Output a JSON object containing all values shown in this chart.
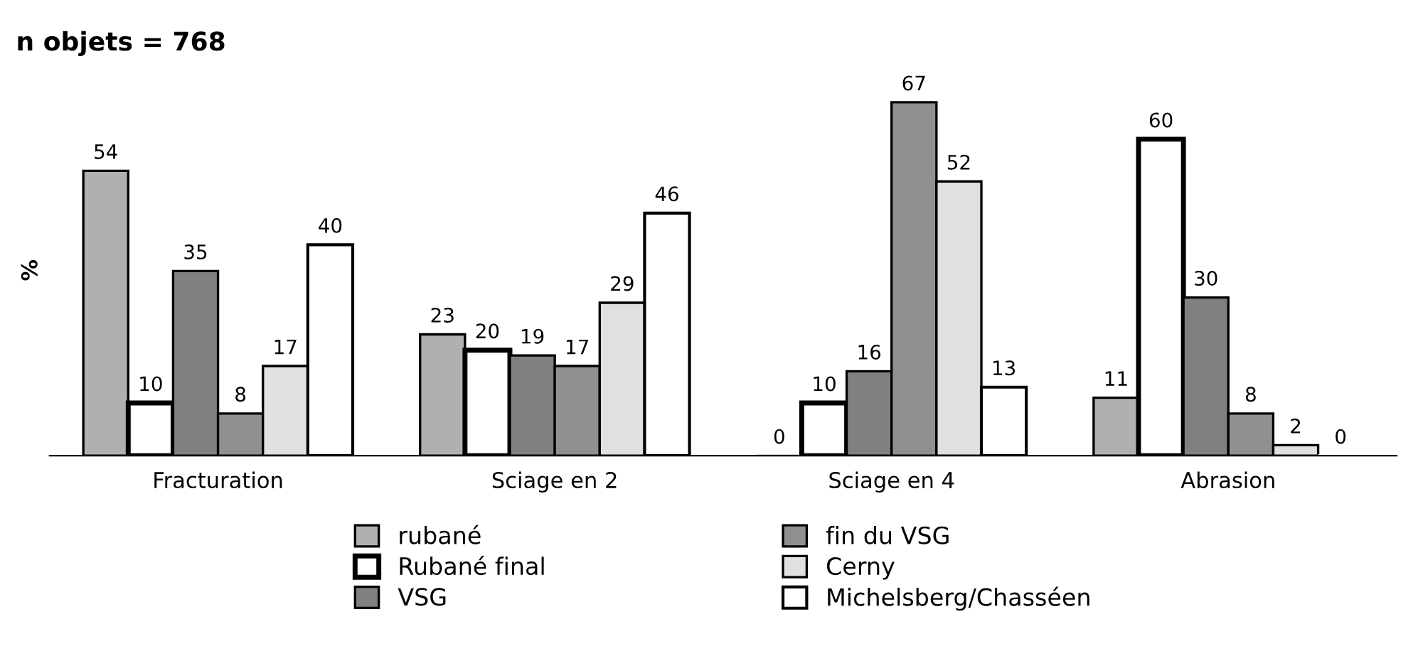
{
  "chart_data": {
    "type": "bar",
    "title": "n objets = 768",
    "ylabel": "%",
    "categories": [
      "Fracturation",
      "Sciage en 2",
      "Sciage en 4",
      "Abrasion"
    ],
    "series": [
      {
        "name": "rubané",
        "color": "#b0b0b0",
        "values": [
          54,
          23,
          0,
          11
        ]
      },
      {
        "name": "Rubané final",
        "color": "#ffffff",
        "values": [
          10,
          20,
          10,
          60
        ]
      },
      {
        "name": "VSG",
        "color": "#808080",
        "values": [
          35,
          19,
          16,
          30
        ]
      },
      {
        "name": "fin du VSG",
        "color": "#909090",
        "values": [
          8,
          17,
          67,
          8
        ]
      },
      {
        "name": "Cerny",
        "color": "#e0e0e0",
        "values": [
          17,
          29,
          52,
          2
        ]
      },
      {
        "name": "Michelsberg/Chasséen",
        "color": "#ffffff",
        "values": [
          40,
          46,
          13,
          0
        ]
      }
    ],
    "data_labels": true,
    "legend": "bottom",
    "grid": false
  }
}
